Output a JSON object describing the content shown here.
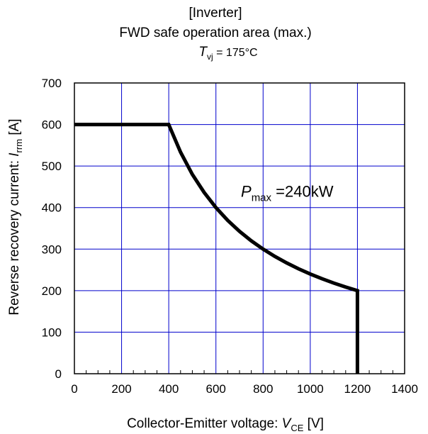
{
  "chart_data": {
    "type": "line",
    "title_line1": "[Inverter]",
    "title_line2": "FWD safe operation area (max.)",
    "condition": {
      "symbol": "T",
      "subscript": "vj",
      "rest": " = 175°C"
    },
    "xlabel": {
      "prefix": "Collector-Emitter voltage: ",
      "symbol": "V",
      "subscript": "CE",
      "suffix": " [V]"
    },
    "ylabel": {
      "prefix": "Reverse recovery current: ",
      "symbol": "I",
      "subscript": "rrm",
      "suffix": " [A]"
    },
    "xlim": [
      0,
      1400
    ],
    "ylim": [
      0,
      700
    ],
    "x_ticks": [
      0,
      200,
      400,
      600,
      800,
      1000,
      1200,
      1400
    ],
    "y_ticks": [
      0,
      100,
      200,
      300,
      400,
      500,
      600,
      700
    ],
    "x_minor_step": 50,
    "grid": true,
    "grid_color": "#0000cc",
    "line_color": "#000000",
    "annotation": {
      "symbol": "P",
      "subscript": "max",
      "rest": " =240kW",
      "x": 700,
      "y": 440
    },
    "series": [
      {
        "x": [
          0,
          400,
          450,
          500,
          550,
          600,
          650,
          700,
          750,
          800,
          850,
          900,
          950,
          1000,
          1050,
          1100,
          1150,
          1200,
          1200
        ],
        "y": [
          600,
          600,
          533.3,
          480,
          436.4,
          400,
          369.2,
          342.9,
          320,
          300,
          282.4,
          266.7,
          252.6,
          240,
          228.6,
          218.2,
          208.7,
          200,
          0
        ]
      }
    ]
  }
}
